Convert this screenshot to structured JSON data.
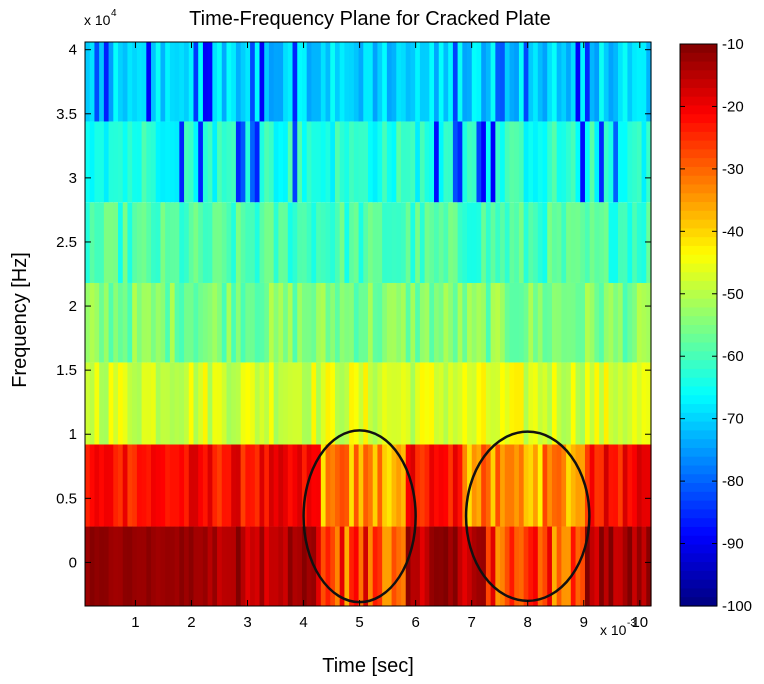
{
  "chart_data": {
    "type": "heatmap",
    "title": "Time-Frequency Plane for Cracked Plate",
    "xlabel": "Time [sec]",
    "ylabel": "Frequency [Hz]",
    "x_multiplier_label": "x 10",
    "x_multiplier_exp": "-3",
    "y_multiplier_label": "x 10",
    "y_multiplier_exp": "4",
    "x_range": [
      0.0001,
      0.0102
    ],
    "y_range": [
      -3400,
      40600
    ],
    "x_ticks": [
      1,
      2,
      3,
      4,
      5,
      6,
      7,
      8,
      9,
      10
    ],
    "x_tick_labels": [
      "1",
      "2",
      "3",
      "4",
      "5",
      "6",
      "7",
      "8",
      "9",
      "10"
    ],
    "y_ticks": [
      0,
      0.5,
      1,
      1.5,
      2,
      2.5,
      3,
      3.5,
      4
    ],
    "y_tick_labels": [
      "0",
      "0.5",
      "1",
      "1.5",
      "2",
      "2.5",
      "3",
      "3.5",
      "4"
    ],
    "frequency_bands_hz": [
      {
        "center": 0,
        "level_db": -14
      },
      {
        "center": 6250,
        "level_db": -22
      },
      {
        "center": 12500,
        "level_db": -47
      },
      {
        "center": 18750,
        "level_db": -55
      },
      {
        "center": 25000,
        "level_db": -60
      },
      {
        "center": 31250,
        "level_db": -63
      },
      {
        "center": 37500,
        "level_db": -70
      }
    ],
    "band_edges_hz": [
      -3400,
      2800,
      9200,
      15600,
      21800,
      28100,
      34400,
      40600
    ],
    "time_columns": 120,
    "colorbar": {
      "range": [
        -100,
        -10
      ],
      "ticks": [
        -10,
        -20,
        -30,
        -40,
        -50,
        -60,
        -70,
        -80,
        -90,
        -100
      ],
      "tick_labels": [
        "-10",
        "-20",
        "-30",
        "-40",
        "-50",
        "-60",
        "-70",
        "-80",
        "-90",
        "-100"
      ],
      "colormap": "jet"
    },
    "annotations": [
      {
        "type": "ellipse",
        "center_x": 0.005,
        "center_y": 3600,
        "rx": 0.001,
        "ry": 6700
      },
      {
        "type": "ellipse",
        "center_x": 0.008,
        "center_y": 3600,
        "rx": 0.0011,
        "ry": 6600
      }
    ],
    "grid": false,
    "legend": "none"
  }
}
